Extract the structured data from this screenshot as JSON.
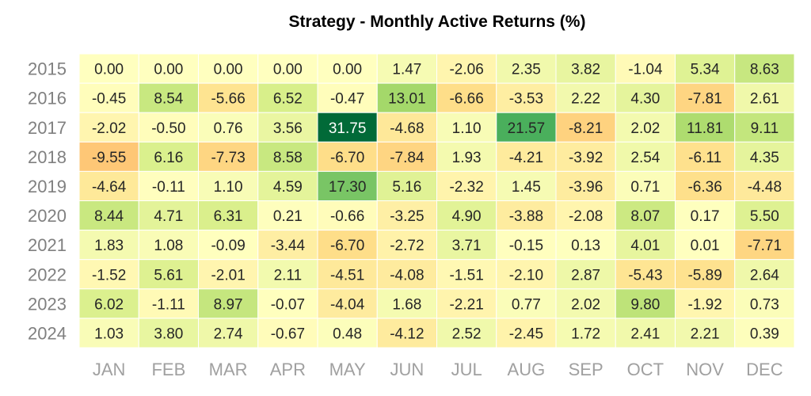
{
  "chart_data": {
    "type": "heatmap",
    "title": "Strategy - Monthly Active Returns (%)",
    "xlabel": "",
    "ylabel": "",
    "x_categories": [
      "JAN",
      "FEB",
      "MAR",
      "APR",
      "MAY",
      "JUN",
      "JUL",
      "AUG",
      "SEP",
      "OCT",
      "NOV",
      "DEC"
    ],
    "y_categories": [
      "2015",
      "2016",
      "2017",
      "2018",
      "2019",
      "2020",
      "2021",
      "2022",
      "2023",
      "2024"
    ],
    "values": [
      [
        "0.00",
        "0.00",
        "0.00",
        "0.00",
        "0.00",
        "1.47",
        "-2.06",
        "2.35",
        "3.82",
        "-1.04",
        "5.34",
        "8.63"
      ],
      [
        "-0.45",
        "8.54",
        "-5.66",
        "6.52",
        "-0.47",
        "13.01",
        "-6.66",
        "-3.53",
        "2.22",
        "4.30",
        "-7.81",
        "2.61"
      ],
      [
        "-2.02",
        "-0.50",
        "0.76",
        "3.56",
        "31.75",
        "-4.68",
        "1.10",
        "21.57",
        "-8.21",
        "2.02",
        "11.81",
        "9.11"
      ],
      [
        "-9.55",
        "6.16",
        "-7.73",
        "8.58",
        "-6.70",
        "-7.84",
        "1.93",
        "-4.21",
        "-3.92",
        "2.54",
        "-6.11",
        "4.35"
      ],
      [
        "-4.64",
        "-0.11",
        "1.10",
        "4.59",
        "17.30",
        "5.16",
        "-2.32",
        "1.45",
        "-3.96",
        "0.71",
        "-6.36",
        "-4.48"
      ],
      [
        "8.44",
        "4.71",
        "6.31",
        "0.21",
        "-0.66",
        "-3.25",
        "4.90",
        "-3.88",
        "-2.08",
        "8.07",
        "0.17",
        "5.50"
      ],
      [
        "1.83",
        "1.08",
        "-0.09",
        "-3.44",
        "-6.70",
        "-2.72",
        "3.71",
        "-0.15",
        "0.13",
        "4.01",
        "0.01",
        "-7.71"
      ],
      [
        "-1.52",
        "5.61",
        "-2.01",
        "2.11",
        "-4.51",
        "-4.08",
        "-1.51",
        "-2.10",
        "2.87",
        "-5.43",
        "-5.89",
        "2.64"
      ],
      [
        "6.02",
        "-1.11",
        "8.97",
        "-0.07",
        "-4.04",
        "1.68",
        "-2.21",
        "0.77",
        "2.02",
        "9.80",
        "-1.92",
        "0.73"
      ],
      [
        "1.03",
        "3.80",
        "2.74",
        "-0.67",
        "0.48",
        "-4.12",
        "2.52",
        "-2.45",
        "1.72",
        "2.41",
        "2.21",
        "0.39"
      ]
    ],
    "color_scale": "RdYlGn",
    "value_range": [
      -32,
      32
    ],
    "colorbar": false,
    "grid": false
  }
}
